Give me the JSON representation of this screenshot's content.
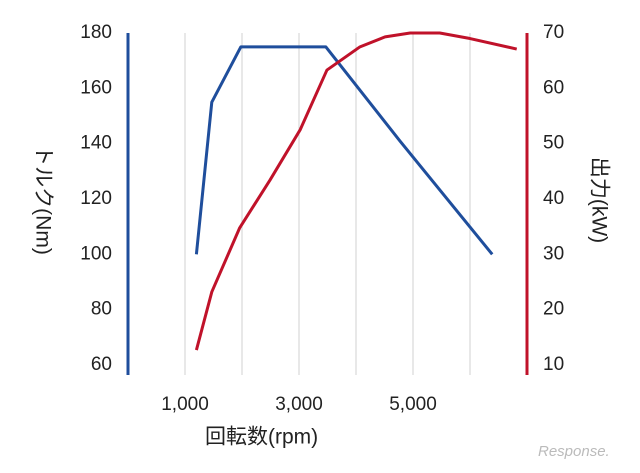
{
  "chart_data": {
    "type": "line",
    "xlabel": "回転数(rpm)",
    "ylabel": "トルク(Nm)",
    "y2label": "出力(kW)",
    "watermark": "Response.",
    "xlim": [
      0,
      7000
    ],
    "xticks": [
      {
        "value": 1000,
        "label": "1,000"
      },
      {
        "value": 3000,
        "label": "3,000"
      },
      {
        "value": 5000,
        "label": "5,000"
      }
    ],
    "xgrid": [
      1000,
      2000,
      3000,
      4000,
      5000,
      6000
    ],
    "ylim": [
      60,
      180
    ],
    "yticks": [
      60,
      80,
      100,
      120,
      140,
      160,
      180
    ],
    "y2lim": [
      10,
      70
    ],
    "y2ticks": [
      10,
      20,
      30,
      40,
      50,
      60,
      70
    ],
    "grid": true,
    "series": [
      {
        "name": "トルク",
        "color": "#1f4e9c",
        "axis": "y",
        "x": [
          1200,
          1470,
          1980,
          3470,
          4770,
          6390
        ],
        "values": [
          100,
          155,
          175,
          175,
          141,
          100
        ]
      },
      {
        "name": "出力",
        "color": "#c0122a",
        "axis": "y2",
        "x": [
          1200,
          1470,
          1960,
          2490,
          3020,
          3490,
          4070,
          4510,
          4950,
          5470,
          6000,
          6820
        ],
        "values": [
          12.7,
          23.2,
          34.8,
          43.4,
          52.5,
          63.3,
          67.5,
          69.3,
          70,
          70,
          69,
          67.1
        ]
      }
    ]
  }
}
